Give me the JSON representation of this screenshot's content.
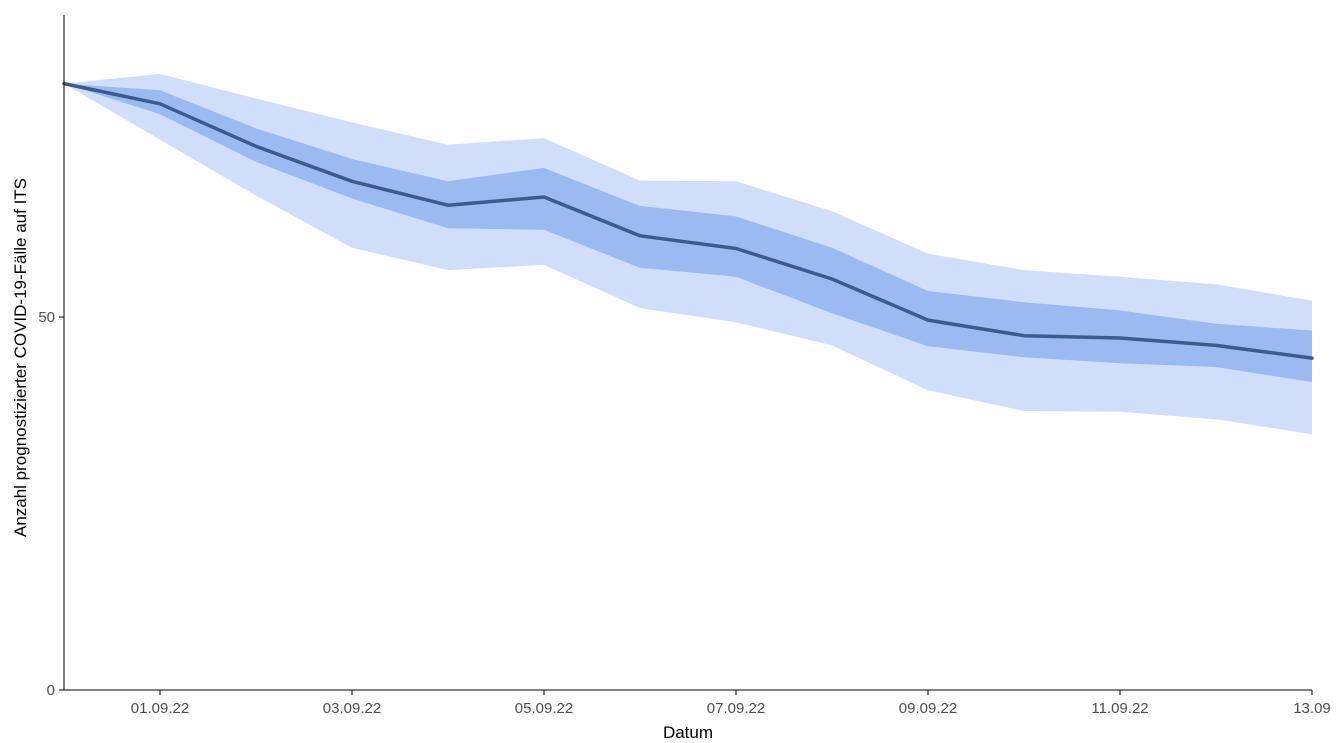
{
  "chart_data": {
    "type": "area",
    "title": "",
    "xlabel": "Datum",
    "ylabel": "Anzahl prognostizierter COVID-19-Fälle auf ITS",
    "x": [
      "31.08.22",
      "01.09.22",
      "02.09.22",
      "03.09.22",
      "04.09.22",
      "05.09.22",
      "06.09.22",
      "07.09.22",
      "08.09.22",
      "09.09.22",
      "10.09.22",
      "11.09.22",
      "12.09.22",
      "13.09.22"
    ],
    "x_tick_labels": [
      "01.09.22",
      "03.09.22",
      "05.09.22",
      "07.09.22",
      "09.09.22",
      "11.09.22",
      "13.09"
    ],
    "x_tick_positions": [
      "01.09.22",
      "03.09.22",
      "05.09.22",
      "07.09.22",
      "09.09.22",
      "11.09.22",
      "13.09.22"
    ],
    "y_ticks": [
      0,
      50
    ],
    "ylim": [
      0,
      90.5
    ],
    "grid": false,
    "legend": "none",
    "series": [
      {
        "role": "median",
        "values": [
          81.3,
          78.6,
          72.9,
          68.2,
          65.0,
          66.1,
          60.9,
          59.2,
          55.1,
          49.6,
          47.5,
          47.2,
          46.2,
          44.5
        ]
      },
      {
        "role": "inner-band",
        "lower": [
          81.3,
          77.2,
          70.8,
          65.9,
          61.9,
          61.7,
          56.6,
          55.4,
          50.5,
          46.1,
          44.6,
          43.8,
          43.3,
          41.3
        ],
        "upper": [
          81.3,
          80.4,
          75.3,
          71.2,
          68.2,
          70.0,
          64.9,
          63.5,
          59.3,
          53.5,
          52.0,
          50.9,
          49.1,
          48.2
        ]
      },
      {
        "role": "outer-band",
        "lower": [
          81.3,
          73.8,
          66.3,
          59.3,
          56.3,
          57.0,
          51.2,
          49.3,
          46.2,
          40.2,
          37.4,
          37.3,
          36.3,
          34.3
        ],
        "upper": [
          81.3,
          82.6,
          79.3,
          76.1,
          73.1,
          74.0,
          68.3,
          68.2,
          64.2,
          58.5,
          56.3,
          55.4,
          54.4,
          52.2
        ]
      }
    ],
    "colors": {
      "outer_band": "#d1defa",
      "inner_band": "#9bbaf2",
      "median_line": "#3e5a8c",
      "axis": "#000000",
      "tick_label": "#4d4d4d"
    }
  }
}
